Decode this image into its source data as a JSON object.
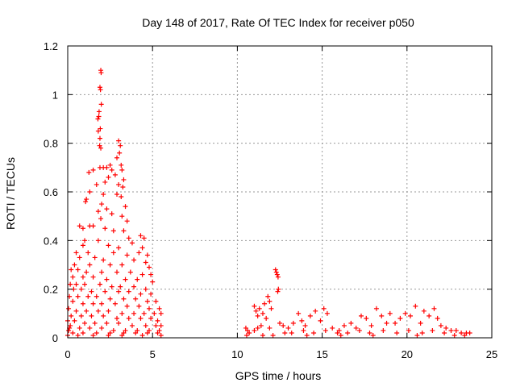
{
  "chart_data": {
    "type": "scatter",
    "title": "Day 148 of 2017, Rate Of TEC Index for receiver p050",
    "xlabel": "GPS time / hours",
    "ylabel": "ROTI / TECUs",
    "xlim": [
      0,
      25
    ],
    "ylim": [
      0,
      1.2
    ],
    "x_ticks": [
      0,
      5,
      10,
      15,
      20,
      25
    ],
    "y_ticks": [
      0,
      0.2,
      0.4,
      0.6,
      0.8,
      1,
      1.2
    ],
    "x_tick_labels": [
      "0",
      "5",
      "10",
      "15",
      "20",
      "25"
    ],
    "y_tick_labels": [
      "0",
      "0.2",
      "0.4",
      "0.6",
      "0.8",
      "1",
      "1.2"
    ],
    "grid": true,
    "marker": "+",
    "marker_color": "#ff0000",
    "series": [
      {
        "name": "ROTI",
        "points": [
          [
            1.95,
            1.1
          ],
          [
            1.97,
            1.09
          ],
          [
            1.9,
            1.03
          ],
          [
            1.93,
            1.02
          ],
          [
            1.98,
            0.96
          ],
          [
            1.85,
            0.93
          ],
          [
            1.78,
            0.9
          ],
          [
            1.83,
            0.91
          ],
          [
            1.8,
            0.85
          ],
          [
            1.92,
            0.86
          ],
          [
            1.9,
            0.82
          ],
          [
            1.95,
            0.78
          ],
          [
            1.88,
            0.79
          ],
          [
            3.0,
            0.81
          ],
          [
            3.1,
            0.79
          ],
          [
            3.05,
            0.76
          ],
          [
            3.15,
            0.71
          ],
          [
            2.9,
            0.74
          ],
          [
            3.2,
            0.69
          ],
          [
            1.25,
            0.68
          ],
          [
            1.5,
            0.69
          ],
          [
            1.9,
            0.7
          ],
          [
            2.1,
            0.7
          ],
          [
            2.3,
            0.7
          ],
          [
            2.5,
            0.71
          ],
          [
            2.6,
            0.69
          ],
          [
            2.8,
            0.67
          ],
          [
            3.3,
            0.65
          ],
          [
            2.4,
            0.66
          ],
          [
            1.7,
            0.63
          ],
          [
            2.2,
            0.64
          ],
          [
            3.0,
            0.63
          ],
          [
            3.25,
            0.62
          ],
          [
            1.3,
            0.6
          ],
          [
            2.9,
            0.59
          ],
          [
            3.15,
            0.58
          ],
          [
            2.1,
            0.59
          ],
          [
            1.1,
            0.57
          ],
          [
            1.05,
            0.56
          ],
          [
            2.0,
            0.55
          ],
          [
            2.3,
            0.53
          ],
          [
            3.4,
            0.54
          ],
          [
            1.8,
            0.52
          ],
          [
            2.6,
            0.51
          ],
          [
            3.2,
            0.5
          ],
          [
            1.95,
            0.49
          ],
          [
            3.5,
            0.48
          ],
          [
            1.3,
            0.46
          ],
          [
            1.5,
            0.46
          ],
          [
            0.7,
            0.46
          ],
          [
            0.9,
            0.45
          ],
          [
            2.2,
            0.45
          ],
          [
            3.3,
            0.44
          ],
          [
            2.7,
            0.44
          ],
          [
            4.3,
            0.42
          ],
          [
            4.5,
            0.41
          ],
          [
            3.6,
            0.41
          ],
          [
            1.0,
            0.4
          ],
          [
            1.8,
            0.4
          ],
          [
            3.8,
            0.39
          ],
          [
            0.9,
            0.38
          ],
          [
            2.4,
            0.38
          ],
          [
            3.0,
            0.37
          ],
          [
            4.4,
            0.37
          ],
          [
            0.5,
            0.35
          ],
          [
            1.2,
            0.35
          ],
          [
            2.7,
            0.35
          ],
          [
            3.5,
            0.34
          ],
          [
            4.2,
            0.35
          ],
          [
            4.7,
            0.34
          ],
          [
            0.7,
            0.33
          ],
          [
            1.6,
            0.33
          ],
          [
            2.1,
            0.32
          ],
          [
            3.9,
            0.32
          ],
          [
            4.6,
            0.31
          ],
          [
            0.4,
            0.3
          ],
          [
            1.3,
            0.3
          ],
          [
            2.5,
            0.3
          ],
          [
            3.2,
            0.3
          ],
          [
            4.8,
            0.29
          ],
          [
            0.2,
            0.28
          ],
          [
            0.6,
            0.28
          ],
          [
            1.1,
            0.27
          ],
          [
            2.0,
            0.27
          ],
          [
            2.9,
            0.27
          ],
          [
            3.7,
            0.27
          ],
          [
            4.4,
            0.26
          ],
          [
            4.9,
            0.26
          ],
          [
            0.3,
            0.25
          ],
          [
            0.9,
            0.25
          ],
          [
            1.5,
            0.25
          ],
          [
            2.3,
            0.24
          ],
          [
            3.4,
            0.24
          ],
          [
            4.1,
            0.24
          ],
          [
            5.0,
            0.23
          ],
          [
            0.15,
            0.22
          ],
          [
            0.5,
            0.22
          ],
          [
            1.0,
            0.22
          ],
          [
            1.9,
            0.22
          ],
          [
            2.6,
            0.21
          ],
          [
            3.1,
            0.21
          ],
          [
            3.9,
            0.21
          ],
          [
            4.6,
            0.2
          ],
          [
            0.35,
            0.2
          ],
          [
            0.8,
            0.2
          ],
          [
            1.4,
            0.19
          ],
          [
            2.2,
            0.19
          ],
          [
            3.0,
            0.19
          ],
          [
            3.6,
            0.19
          ],
          [
            4.3,
            0.18
          ],
          [
            4.9,
            0.18
          ],
          [
            0.1,
            0.17
          ],
          [
            0.6,
            0.17
          ],
          [
            1.2,
            0.17
          ],
          [
            1.7,
            0.17
          ],
          [
            2.5,
            0.16
          ],
          [
            3.3,
            0.16
          ],
          [
            4.0,
            0.16
          ],
          [
            4.7,
            0.15
          ],
          [
            5.2,
            0.15
          ],
          [
            0.3,
            0.15
          ],
          [
            0.9,
            0.14
          ],
          [
            1.5,
            0.14
          ],
          [
            2.0,
            0.14
          ],
          [
            2.8,
            0.14
          ],
          [
            3.5,
            0.13
          ],
          [
            4.2,
            0.13
          ],
          [
            4.8,
            0.12
          ],
          [
            5.4,
            0.12
          ],
          [
            0.05,
            0.12
          ],
          [
            0.5,
            0.11
          ],
          [
            1.1,
            0.11
          ],
          [
            1.8,
            0.11
          ],
          [
            2.4,
            0.11
          ],
          [
            3.2,
            0.1
          ],
          [
            3.9,
            0.1
          ],
          [
            4.5,
            0.1
          ],
          [
            5.1,
            0.1
          ],
          [
            5.5,
            0.1
          ],
          [
            0.2,
            0.09
          ],
          [
            0.8,
            0.09
          ],
          [
            1.4,
            0.09
          ],
          [
            2.1,
            0.09
          ],
          [
            2.9,
            0.08
          ],
          [
            3.6,
            0.08
          ],
          [
            4.3,
            0.08
          ],
          [
            4.9,
            0.08
          ],
          [
            5.3,
            0.07
          ],
          [
            0.0,
            0.07
          ],
          [
            0.4,
            0.07
          ],
          [
            1.0,
            0.06
          ],
          [
            1.6,
            0.06
          ],
          [
            2.3,
            0.06
          ],
          [
            3.0,
            0.06
          ],
          [
            3.8,
            0.05
          ],
          [
            4.6,
            0.05
          ],
          [
            5.2,
            0.05
          ],
          [
            5.5,
            0.05
          ],
          [
            0.1,
            0.04
          ],
          [
            0.7,
            0.04
          ],
          [
            1.3,
            0.04
          ],
          [
            2.0,
            0.04
          ],
          [
            2.7,
            0.03
          ],
          [
            3.4,
            0.03
          ],
          [
            4.1,
            0.03
          ],
          [
            4.8,
            0.03
          ],
          [
            5.4,
            0.03
          ],
          [
            0.3,
            0.02
          ],
          [
            0.9,
            0.02
          ],
          [
            1.7,
            0.02
          ],
          [
            2.5,
            0.02
          ],
          [
            3.3,
            0.02
          ],
          [
            4.0,
            0.02
          ],
          [
            4.7,
            0.02
          ],
          [
            5.3,
            0.02
          ],
          [
            0.0,
            0.01
          ],
          [
            0.6,
            0.01
          ],
          [
            1.5,
            0.01
          ],
          [
            2.4,
            0.01
          ],
          [
            3.2,
            0.01
          ],
          [
            4.4,
            0.01
          ],
          [
            5.5,
            0.01
          ],
          [
            0.05,
            0.03
          ],
          [
            0.15,
            0.05
          ],
          [
            10.5,
            0.04
          ],
          [
            10.6,
            0.03
          ],
          [
            10.7,
            0.02
          ],
          [
            10.55,
            0.01
          ],
          [
            11.0,
            0.13
          ],
          [
            11.1,
            0.11
          ],
          [
            11.2,
            0.09
          ],
          [
            11.3,
            0.12
          ],
          [
            11.5,
            0.1
          ],
          [
            11.6,
            0.14
          ],
          [
            11.8,
            0.17
          ],
          [
            11.9,
            0.15
          ],
          [
            12.0,
            0.12
          ],
          [
            11.7,
            0.08
          ],
          [
            12.25,
            0.28
          ],
          [
            12.3,
            0.27
          ],
          [
            12.35,
            0.26
          ],
          [
            12.4,
            0.25
          ],
          [
            12.42,
            0.2
          ],
          [
            12.38,
            0.19
          ],
          [
            12.5,
            0.06
          ],
          [
            11.4,
            0.05
          ],
          [
            11.2,
            0.04
          ],
          [
            11.0,
            0.03
          ],
          [
            11.9,
            0.04
          ],
          [
            12.7,
            0.05
          ],
          [
            13.0,
            0.04
          ],
          [
            13.3,
            0.06
          ],
          [
            13.6,
            0.1
          ],
          [
            13.8,
            0.07
          ],
          [
            14.0,
            0.05
          ],
          [
            14.3,
            0.09
          ],
          [
            14.6,
            0.11
          ],
          [
            14.9,
            0.07
          ],
          [
            15.1,
            0.12
          ],
          [
            15.3,
            0.1
          ],
          [
            15.6,
            0.04
          ],
          [
            16.0,
            0.03
          ],
          [
            16.3,
            0.05
          ],
          [
            16.7,
            0.06
          ],
          [
            17.0,
            0.04
          ],
          [
            17.3,
            0.09
          ],
          [
            17.6,
            0.08
          ],
          [
            17.9,
            0.05
          ],
          [
            18.2,
            0.12
          ],
          [
            18.5,
            0.09
          ],
          [
            18.8,
            0.06
          ],
          [
            19.0,
            0.1
          ],
          [
            19.3,
            0.06
          ],
          [
            19.6,
            0.08
          ],
          [
            19.9,
            0.1
          ],
          [
            20.2,
            0.09
          ],
          [
            20.5,
            0.13
          ],
          [
            20.8,
            0.06
          ],
          [
            21.0,
            0.11
          ],
          [
            21.3,
            0.09
          ],
          [
            21.6,
            0.12
          ],
          [
            21.8,
            0.08
          ],
          [
            22.0,
            0.05
          ],
          [
            22.3,
            0.04
          ],
          [
            22.6,
            0.03
          ],
          [
            22.9,
            0.03
          ],
          [
            23.2,
            0.02
          ],
          [
            23.5,
            0.02
          ],
          [
            12.8,
            0.02
          ],
          [
            13.2,
            0.02
          ],
          [
            13.9,
            0.03
          ],
          [
            14.5,
            0.02
          ],
          [
            15.2,
            0.03
          ],
          [
            15.9,
            0.02
          ],
          [
            16.5,
            0.02
          ],
          [
            17.2,
            0.03
          ],
          [
            17.8,
            0.02
          ],
          [
            18.6,
            0.03
          ],
          [
            19.4,
            0.02
          ],
          [
            20.1,
            0.03
          ],
          [
            20.9,
            0.02
          ],
          [
            21.5,
            0.03
          ],
          [
            22.2,
            0.02
          ],
          [
            22.8,
            0.01
          ],
          [
            23.4,
            0.01
          ],
          [
            23.7,
            0.02
          ],
          [
            16.1,
            0.01
          ],
          [
            18.0,
            0.01
          ],
          [
            20.6,
            0.01
          ],
          [
            14.1,
            0.01
          ],
          [
            12.1,
            0.01
          ],
          [
            11.5,
            0.01
          ]
        ]
      }
    ]
  }
}
